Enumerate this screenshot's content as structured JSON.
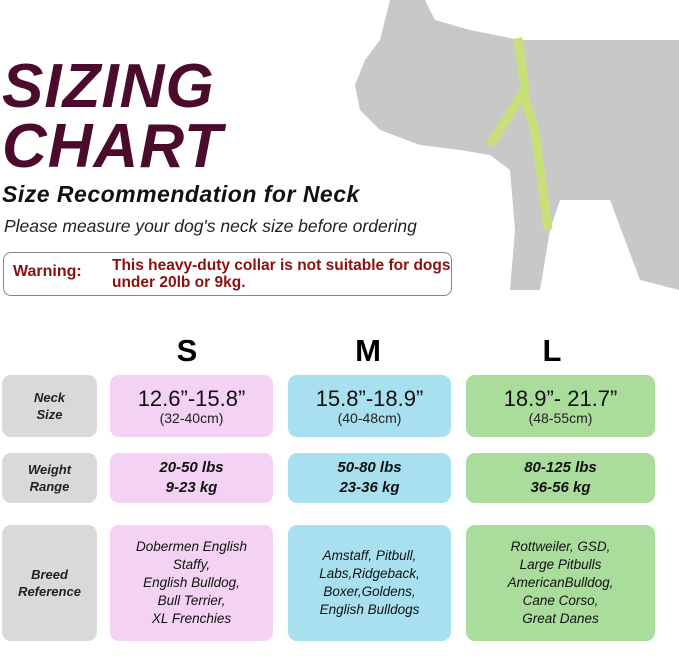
{
  "title": {
    "line1": "SIZING",
    "line2": "CHART"
  },
  "subtitle": "Size Recommendation for Neck",
  "instruction": "Please measure your dog's neck size before ordering",
  "warning": {
    "label": "Warning:",
    "message": "This heavy-duty collar is not suitable for dogs under 20lb or 9kg."
  },
  "colors": {
    "title": "#4a0b2c",
    "warning": "#8b1010",
    "S": "#f3d2f3",
    "M": "#a9e0ef",
    "L": "#aadc9b",
    "label": "#d9d9d9"
  },
  "table": {
    "sizes": [
      "S",
      "M",
      "L"
    ],
    "row_labels": [
      "Neck Size",
      "Weight Range",
      "Breed Reference"
    ],
    "neck": [
      {
        "in": "12.6”-15.8”",
        "cm": "(32-40cm)"
      },
      {
        "in": "15.8”-18.9”",
        "cm": "(40-48cm)"
      },
      {
        "in": "18.9”- 21.7”",
        "cm": "(48-55cm)"
      }
    ],
    "weight": [
      {
        "lbs": "20-50 lbs",
        "kg": "9-23 kg"
      },
      {
        "lbs": "50-80 lbs",
        "kg": "23-36 kg"
      },
      {
        "lbs": "80-125 lbs",
        "kg": "36-56 kg"
      }
    ],
    "breeds": [
      "Dobermen English\nStaffy,\nEnglish Bulldog,\nBull Terrier,\nXL Frenchies",
      "Amstaff, Pitbull,\nLabs,Ridgeback,\nBoxer,Goldens,\nEnglish Bulldogs",
      "Rottweiler, GSD,\nLarge Pitbulls\nAmericanBulldog,\nCane Corso,\nGreat Danes"
    ]
  }
}
